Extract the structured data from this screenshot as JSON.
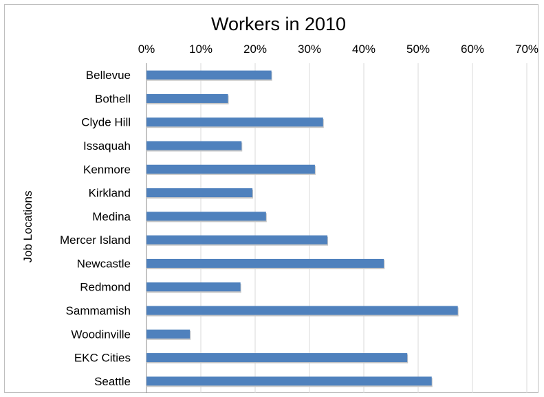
{
  "chart_data": {
    "type": "bar",
    "orientation": "horizontal",
    "title": "Workers in 2010",
    "xlabel": "",
    "ylabel": "Job Locations",
    "xlim": [
      0,
      70
    ],
    "xticks": [
      "0%",
      "10%",
      "20%",
      "30%",
      "40%",
      "50%",
      "60%",
      "70%"
    ],
    "x_axis_position": "top",
    "grid": true,
    "categories": [
      "Bellevue",
      "Bothell",
      "Clyde Hill",
      "Issaquah",
      "Kenmore",
      "Kirkland",
      "Medina",
      "Mercer Island",
      "Newcastle",
      "Redmond",
      "Sammamish",
      "Woodinville",
      "EKC Cities",
      "Seattle"
    ],
    "values": [
      23,
      15,
      32.5,
      17.5,
      31,
      19.5,
      22,
      33.3,
      43.7,
      17.3,
      57.3,
      8,
      48,
      52.5
    ],
    "color": "#4f81bd"
  }
}
